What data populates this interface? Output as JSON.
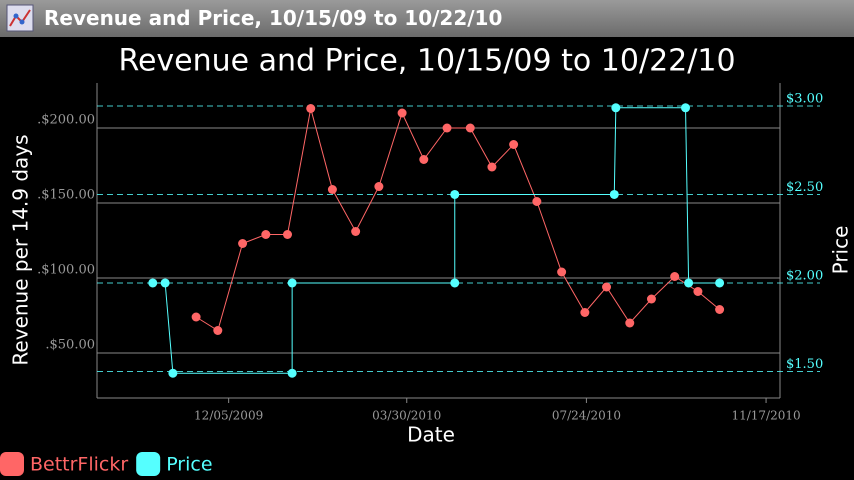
{
  "app_bar": {
    "title": "Revenue and Price, 10/15/09 to 10/22/10"
  },
  "chart_data": {
    "type": "line",
    "title": "Revenue and Price, 10/15/09 to 10/22/10",
    "x_label": "Date",
    "y_label": "Revenue per 14.9 days",
    "y2_label": "Price",
    "xlim": [
      "09/11/2009",
      "11/26/2010"
    ],
    "xticks": [
      "12/05/2009",
      "03/30/2010",
      "07/24/2010",
      "11/17/2010"
    ],
    "ylim": [
      20,
      230
    ],
    "yticks": [
      {
        "value": 50,
        "label": ".$50.00"
      },
      {
        "value": 100,
        "label": ".$100.00"
      },
      {
        "value": 150,
        "label": ".$150.00"
      },
      {
        "value": 200,
        "label": ".$200.00"
      }
    ],
    "y2lim": [
      1.35,
      3.13
    ],
    "y2ticks": [
      {
        "value": 1.5,
        "label": "$1.50"
      },
      {
        "value": 2,
        "label": "$2.00"
      },
      {
        "value": 2.5,
        "label": "$2.50"
      },
      {
        "value": 3,
        "label": "$3.00"
      }
    ],
    "grid": true,
    "legend": "bottom-left",
    "series": [
      {
        "name": "BettrFlickr",
        "color": "#ff6666",
        "x": [
          "11/14/2009",
          "11/28/2009",
          "12/14/2009",
          "12/29/2009",
          "01/12/2010",
          "01/27/2010",
          "02/10/2010",
          "02/25/2010",
          "03/12/2010",
          "03/27/2010",
          "04/10/2010",
          "04/25/2010",
          "05/10/2010",
          "05/24/2010",
          "06/07/2010",
          "06/22/2010",
          "07/08/2010",
          "07/23/2010",
          "08/06/2010",
          "08/21/2010",
          "09/04/2010",
          "09/19/2010",
          "10/04/2010",
          "10/18/2010"
        ],
        "values": [
          74,
          65,
          123,
          129,
          129,
          213,
          159,
          131,
          161,
          210,
          179,
          200,
          200,
          174,
          189,
          151,
          104,
          77,
          94,
          70,
          86,
          101,
          91,
          79
        ]
      },
      {
        "name": "Price",
        "color": "#55ffff",
        "axis": "y2",
        "x": [
          "10/17/2009",
          "10/25/2009",
          "10/30/2009",
          "01/15/2010",
          "01/15/2010",
          "04/30/2010",
          "04/30/2010",
          "08/11/2010",
          "08/12/2010",
          "09/26/2010",
          "09/28/2010",
          "10/18/2010"
        ],
        "values": [
          2.0,
          2.0,
          1.49,
          1.49,
          2.0,
          2.0,
          2.5,
          2.5,
          2.99,
          2.99,
          2.0,
          2.0
        ]
      }
    ]
  }
}
